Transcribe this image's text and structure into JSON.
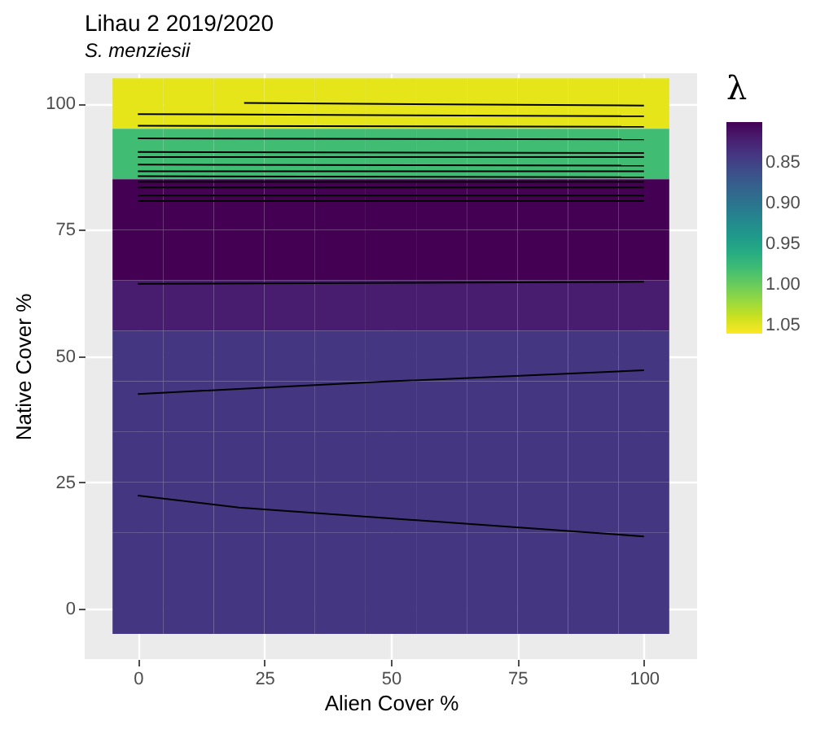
{
  "chart_data": {
    "type": "heatmap",
    "title": "Lihau 2 2019/2020",
    "subtitle": "S. menziesii",
    "xlabel": "Alien Cover %",
    "ylabel": "Native Cover %",
    "legend_title": "λ",
    "x": [
      0,
      10,
      20,
      30,
      40,
      50,
      60,
      70,
      80,
      90,
      100
    ],
    "y": [
      100,
      90,
      80,
      70,
      60,
      50,
      40,
      30,
      20,
      10,
      0
    ],
    "cells": [
      [
        1.05,
        1.05,
        1.05,
        1.05,
        1.05,
        1.05,
        1.05,
        1.05,
        1.05,
        1.05,
        1.05
      ],
      [
        0.98,
        0.98,
        0.98,
        0.98,
        0.98,
        0.98,
        0.98,
        0.98,
        0.98,
        0.98,
        0.98
      ],
      [
        0.8,
        0.8,
        0.8,
        0.8,
        0.8,
        0.8,
        0.8,
        0.8,
        0.8,
        0.8,
        0.8
      ],
      [
        0.8,
        0.8,
        0.8,
        0.8,
        0.8,
        0.8,
        0.8,
        0.8,
        0.8,
        0.8,
        0.8
      ],
      [
        0.82,
        0.82,
        0.82,
        0.82,
        0.82,
        0.82,
        0.82,
        0.82,
        0.82,
        0.82,
        0.82
      ],
      [
        0.84,
        0.84,
        0.84,
        0.84,
        0.84,
        0.84,
        0.84,
        0.84,
        0.84,
        0.84,
        0.84
      ],
      [
        0.84,
        0.84,
        0.84,
        0.84,
        0.84,
        0.84,
        0.84,
        0.84,
        0.84,
        0.84,
        0.84
      ],
      [
        0.84,
        0.84,
        0.84,
        0.84,
        0.84,
        0.84,
        0.84,
        0.84,
        0.84,
        0.84,
        0.84
      ],
      [
        0.84,
        0.84,
        0.84,
        0.84,
        0.84,
        0.84,
        0.84,
        0.84,
        0.84,
        0.84,
        0.84
      ],
      [
        0.84,
        0.84,
        0.84,
        0.84,
        0.84,
        0.84,
        0.84,
        0.84,
        0.84,
        0.84,
        0.84
      ],
      [
        0.84,
        0.84,
        0.84,
        0.84,
        0.84,
        0.84,
        0.84,
        0.84,
        0.84,
        0.84,
        0.84
      ]
    ],
    "clim": [
      0.8,
      1.06
    ],
    "cticks": [
      0.85,
      {
        "value": 0.9,
        "label": "0.90"
      },
      0.95,
      {
        "value": 1.0,
        "label": "1.00"
      },
      1.05
    ],
    "series": [
      {
        "type": "line",
        "color": "#000000",
        "x": [
          0,
          20,
          100
        ],
        "values": [
          22.4,
          20,
          14.3
        ]
      },
      {
        "type": "line",
        "color": "#000000",
        "x": [
          0,
          50,
          100
        ],
        "values": [
          42.5,
          45,
          47.2
        ]
      },
      {
        "type": "line",
        "color": "#000000",
        "x": [
          0,
          100
        ],
        "values": [
          64.3,
          64.7
        ]
      },
      {
        "type": "line",
        "color": "#000000",
        "x": [
          0,
          100
        ],
        "values": [
          80.7,
          80.7
        ]
      },
      {
        "type": "line",
        "color": "#000000",
        "x": [
          0,
          100
        ],
        "values": [
          81.8,
          81.8
        ]
      },
      {
        "type": "line",
        "color": "#000000",
        "x": [
          0,
          100
        ],
        "values": [
          83.4,
          83.4
        ]
      },
      {
        "type": "line",
        "color": "#000000",
        "x": [
          0,
          100
        ],
        "values": [
          84.5,
          84.5
        ]
      },
      {
        "type": "line",
        "color": "#000000",
        "x": [
          0,
          100
        ],
        "values": [
          85.6,
          85.4
        ]
      },
      {
        "type": "line",
        "color": "#000000",
        "x": [
          0,
          100
        ],
        "values": [
          86.6,
          86.6
        ]
      },
      {
        "type": "line",
        "color": "#000000",
        "x": [
          0,
          100
        ],
        "values": [
          87.9,
          87.7
        ]
      },
      {
        "type": "line",
        "color": "#000000",
        "x": [
          0,
          100
        ],
        "values": [
          89.4,
          89.4
        ]
      },
      {
        "type": "line",
        "color": "#000000",
        "x": [
          0,
          100
        ],
        "values": [
          90.4,
          90.2
        ]
      },
      {
        "type": "line",
        "color": "#000000",
        "x": [
          0,
          100
        ],
        "values": [
          93.1,
          92.9
        ]
      },
      {
        "type": "line",
        "color": "#000000",
        "x": [
          0,
          100
        ],
        "values": [
          95.6,
          95.4
        ]
      },
      {
        "type": "line",
        "color": "#000000",
        "x": [
          0,
          100
        ],
        "values": [
          97.9,
          97.5
        ]
      },
      {
        "type": "line",
        "color": "#000000",
        "x": [
          21,
          100
        ],
        "values": [
          100.1,
          99.6
        ]
      }
    ],
    "xlim": [
      -10.5,
      110.5
    ],
    "ylim": [
      -10,
      106
    ],
    "xticks": [
      0,
      25,
      50,
      75,
      100
    ],
    "yticks": [
      0,
      25,
      50,
      75,
      100
    ],
    "grid": true
  }
}
